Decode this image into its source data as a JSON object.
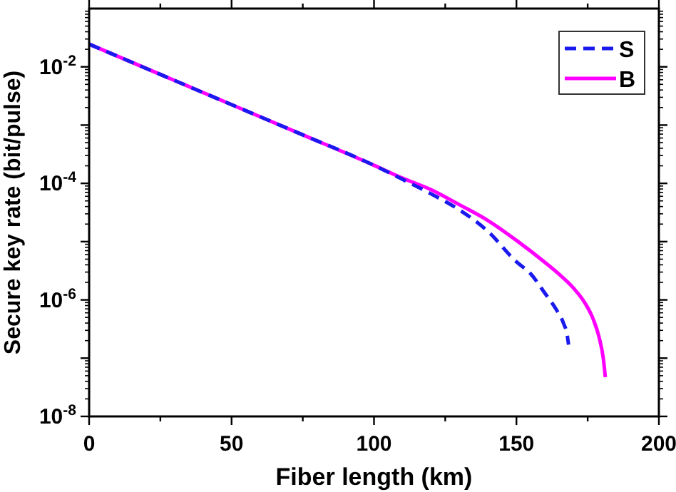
{
  "chart_data": {
    "type": "line",
    "xlabel": "Fiber length (km)",
    "ylabel": "Secure key rate (bit/pulse)",
    "log": "y",
    "xlim": [
      0,
      200
    ],
    "xticks": [
      0,
      {
        "value": 25,
        "label": null
      },
      50,
      {
        "value": 75,
        "label": null
      },
      100,
      {
        "value": 125,
        "label": null
      },
      150,
      {
        "value": 175,
        "label": null
      },
      200
    ],
    "ylim": [
      1e-08,
      0.1
    ],
    "yticks": [
      {
        "value": 1e-08,
        "label": "10$^{-8}$"
      },
      {
        "value": 1e-07,
        "label": null
      },
      {
        "value": 1e-06,
        "label": "10$^{-6}$"
      },
      {
        "value": 1e-05,
        "label": null
      },
      {
        "value": 0.0001,
        "label": "10$^{-4}$"
      },
      {
        "value": 0.001,
        "label": null
      },
      {
        "value": 0.01,
        "label": "10$^{-2}$"
      }
    ],
    "legend": "top right",
    "grid": false,
    "series": [
      {
        "name": "S",
        "color": "#1a1aee",
        "line_style": "dashed",
        "x": [
          0,
          25,
          50,
          75,
          100,
          110,
          120,
          130,
          140,
          150,
          155,
          160,
          164,
          166.5,
          167.8,
          168.3
        ],
        "values": [
          0.0245,
          0.0074,
          0.00224,
          0.00068,
          0.000204,
          0.000117,
          6.6e-05,
          3.5e-05,
          1.5e-05,
          4.5e-06,
          2.8e-06,
          1.3e-06,
          6.8e-07,
          4e-07,
          2.5e-07,
          1.7e-07
        ]
      },
      {
        "name": "B",
        "color": "#ff00ff",
        "line_style": "solid",
        "x": [
          0,
          25,
          50,
          75,
          100,
          110,
          120,
          130,
          140,
          150,
          160,
          165,
          170,
          174,
          177,
          179,
          180.5,
          181.2
        ],
        "values": [
          0.0245,
          0.0074,
          0.00224,
          0.00068,
          0.000204,
          0.000123,
          7.8e-05,
          4.3e-05,
          2.3e-05,
          1.05e-05,
          4.4e-06,
          2.75e-06,
          1.6e-06,
          8.9e-07,
          4.6e-07,
          2.3e-07,
          9.8e-08,
          4.7e-08
        ]
      }
    ]
  }
}
